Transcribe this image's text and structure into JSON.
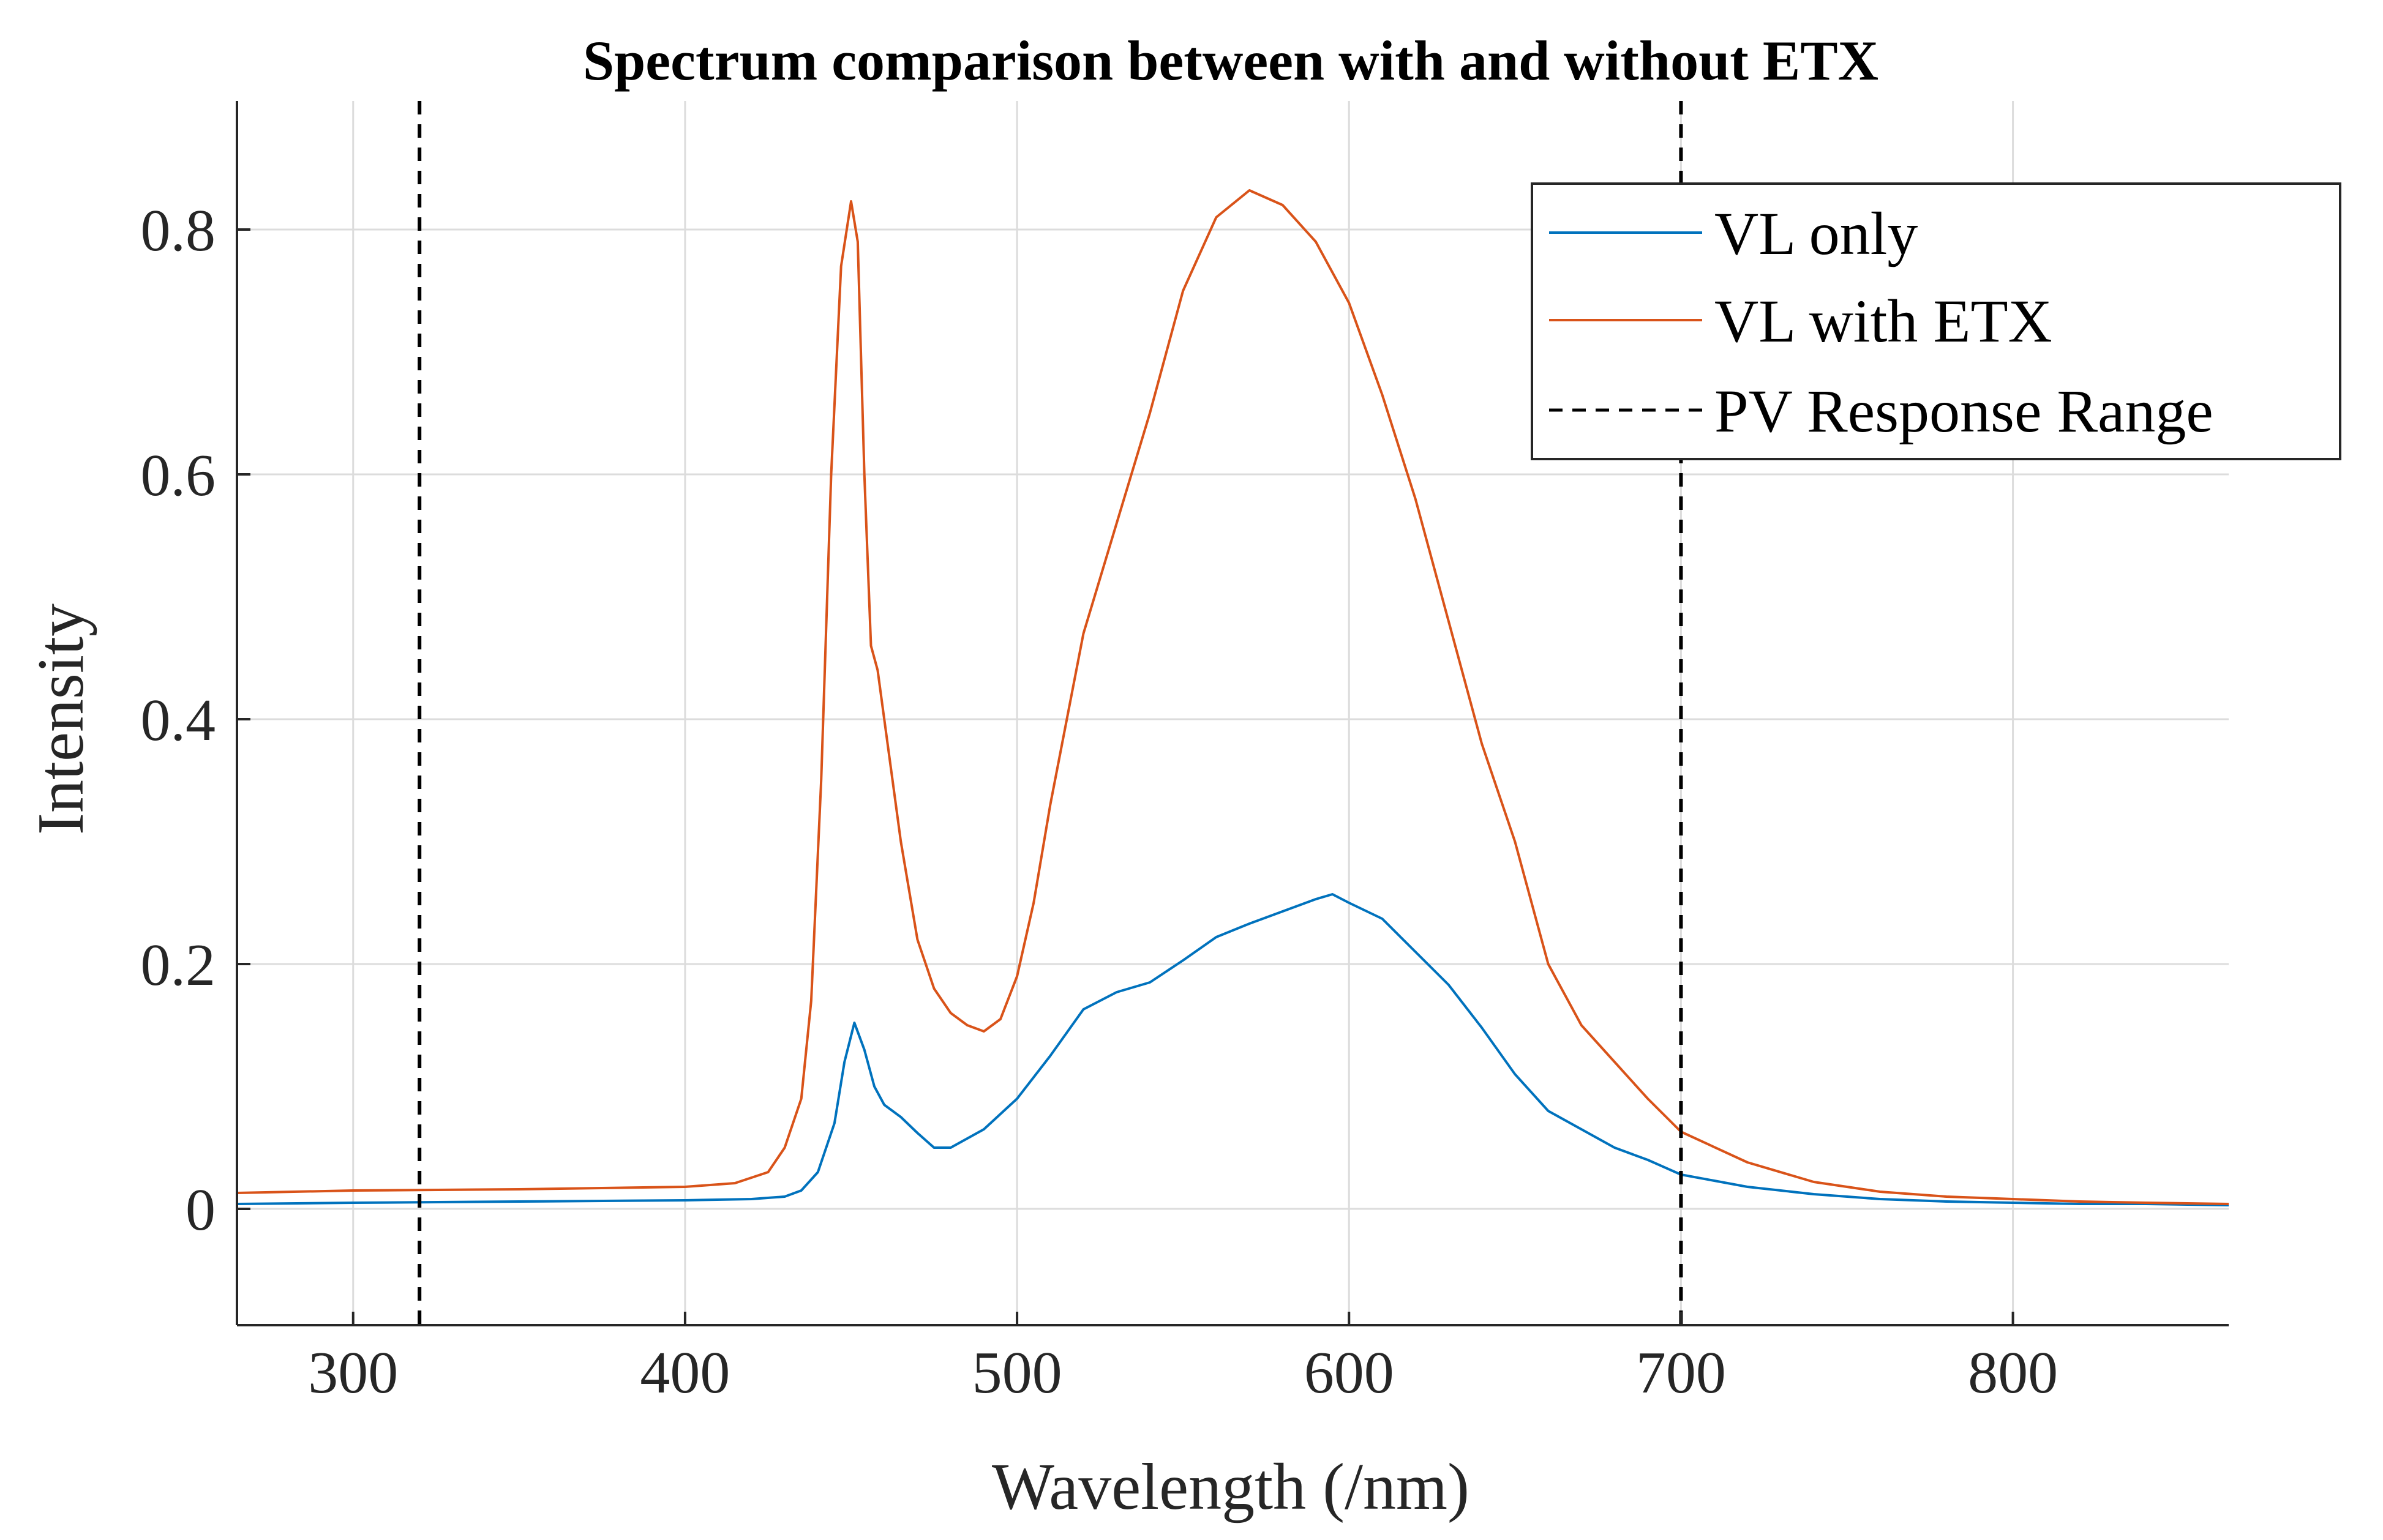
{
  "chart_data": {
    "type": "line",
    "title": "Spectrum comparison between with and without ETX",
    "xlabel": "Wavelength (/nm)",
    "ylabel": "Intensity",
    "xlim": [
      265,
      865
    ],
    "ylim": [
      -0.095,
      0.905
    ],
    "xticks": [
      300,
      400,
      500,
      600,
      700,
      800
    ],
    "xtick_labels": [
      "300",
      "400",
      "500",
      "600",
      "700",
      "800"
    ],
    "yticks": [
      0,
      0.2,
      0.4,
      0.6,
      0.8
    ],
    "ytick_labels": [
      "0",
      "0.2",
      "0.4",
      "0.6",
      "0.8"
    ],
    "grid": true,
    "legend_position": "top-right",
    "series": [
      {
        "name": "VL only",
        "color": "#0072BD",
        "style": "solid",
        "x": [
          265,
          300,
          350,
          400,
          420,
          430,
          435,
          440,
          445,
          448,
          451,
          454,
          457,
          460,
          465,
          470,
          475,
          480,
          490,
          500,
          510,
          520,
          530,
          540,
          550,
          560,
          570,
          580,
          590,
          595,
          600,
          610,
          620,
          630,
          640,
          650,
          660,
          670,
          680,
          690,
          700,
          720,
          740,
          760,
          780,
          800,
          820,
          840,
          865
        ],
        "values": [
          0.004,
          0.005,
          0.006,
          0.007,
          0.008,
          0.01,
          0.015,
          0.03,
          0.07,
          0.12,
          0.152,
          0.13,
          0.1,
          0.085,
          0.075,
          0.062,
          0.05,
          0.05,
          0.065,
          0.09,
          0.125,
          0.163,
          0.177,
          0.185,
          0.203,
          0.222,
          0.233,
          0.243,
          0.253,
          0.257,
          0.25,
          0.237,
          0.21,
          0.183,
          0.148,
          0.11,
          0.08,
          0.065,
          0.05,
          0.04,
          0.028,
          0.018,
          0.012,
          0.008,
          0.006,
          0.005,
          0.004,
          0.004,
          0.003
        ]
      },
      {
        "name": "VL with ETX",
        "color": "#D95319",
        "style": "solid",
        "x": [
          265,
          300,
          350,
          400,
          415,
          425,
          430,
          435,
          438,
          441,
          444,
          447,
          450,
          452,
          454,
          456,
          458,
          460,
          465,
          470,
          475,
          480,
          485,
          490,
          495,
          500,
          505,
          510,
          520,
          530,
          540,
          550,
          560,
          570,
          580,
          590,
          600,
          610,
          620,
          630,
          640,
          650,
          660,
          670,
          680,
          690,
          700,
          720,
          740,
          760,
          780,
          800,
          820,
          840,
          865
        ],
        "values": [
          0.013,
          0.015,
          0.016,
          0.018,
          0.021,
          0.03,
          0.05,
          0.09,
          0.17,
          0.35,
          0.6,
          0.77,
          0.823,
          0.79,
          0.6,
          0.46,
          0.44,
          0.4,
          0.3,
          0.22,
          0.18,
          0.16,
          0.15,
          0.145,
          0.155,
          0.19,
          0.25,
          0.33,
          0.47,
          0.56,
          0.65,
          0.75,
          0.81,
          0.832,
          0.82,
          0.79,
          0.74,
          0.665,
          0.58,
          0.48,
          0.38,
          0.3,
          0.2,
          0.15,
          0.12,
          0.09,
          0.063,
          0.038,
          0.022,
          0.014,
          0.01,
          0.008,
          0.006,
          0.005,
          0.004
        ]
      },
      {
        "name": "PV Response Range",
        "color": "#000000",
        "style": "dashed",
        "vlines": [
          320,
          700
        ]
      }
    ]
  }
}
